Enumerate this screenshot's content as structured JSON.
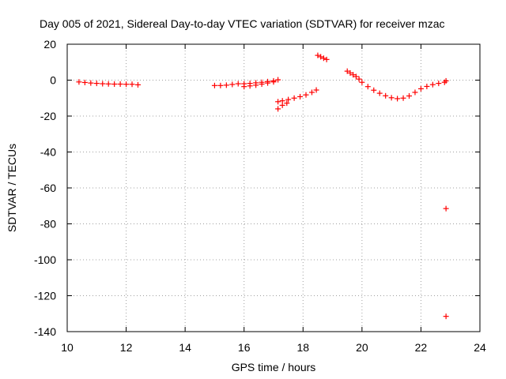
{
  "chart_data": {
    "type": "scatter",
    "title": "Day 005 of 2021, Sidereal Day-to-day VTEC variation (SDTVAR) for receiver mzac",
    "xlabel": "GPS time / hours",
    "ylabel": "SDTVAR / TECUs",
    "xlim": [
      10,
      24
    ],
    "ylim": [
      -140,
      20
    ],
    "xticks": [
      "10",
      "12",
      "14",
      "16",
      "18",
      "20",
      "22",
      "24"
    ],
    "yticks": [
      "20",
      "0",
      "-20",
      "-40",
      "-60",
      "-80",
      "-100",
      "-120",
      "-140"
    ],
    "grid": true,
    "marker": "plus",
    "color": "#ff0000",
    "series": [
      {
        "points": [
          [
            10.4,
            -1.0
          ],
          [
            10.6,
            -1.3
          ],
          [
            10.8,
            -1.6
          ],
          [
            11.0,
            -1.8
          ],
          [
            11.2,
            -2.0
          ],
          [
            11.4,
            -2.1
          ],
          [
            11.6,
            -2.2
          ],
          [
            11.8,
            -2.2
          ],
          [
            12.0,
            -2.3
          ],
          [
            12.2,
            -2.3
          ],
          [
            12.4,
            -2.6
          ],
          [
            15.0,
            -3.0
          ],
          [
            15.2,
            -3.0
          ],
          [
            15.4,
            -2.8
          ],
          [
            15.6,
            -2.4
          ],
          [
            15.8,
            -2.0
          ],
          [
            16.0,
            -2.0
          ],
          [
            16.2,
            -1.8
          ],
          [
            16.4,
            -1.5
          ],
          [
            16.6,
            -1.2
          ],
          [
            16.8,
            -0.8
          ],
          [
            17.0,
            -0.4
          ],
          [
            17.15,
            0.2
          ],
          [
            16.0,
            -3.6
          ],
          [
            16.2,
            -3.2
          ],
          [
            16.4,
            -2.8
          ],
          [
            16.6,
            -2.2
          ],
          [
            16.8,
            -1.6
          ],
          [
            17.0,
            -1.0
          ],
          [
            17.15,
            -12.0
          ],
          [
            17.3,
            -11.5
          ],
          [
            17.5,
            -10.8
          ],
          [
            17.7,
            -10.0
          ],
          [
            17.9,
            -9.2
          ],
          [
            18.1,
            -8.2
          ],
          [
            18.3,
            -6.8
          ],
          [
            18.45,
            -5.5
          ],
          [
            17.15,
            -16.0
          ],
          [
            17.3,
            -14.0
          ],
          [
            17.45,
            -12.8
          ],
          [
            18.5,
            13.8
          ],
          [
            18.6,
            13.0
          ],
          [
            18.7,
            12.2
          ],
          [
            18.8,
            11.5
          ],
          [
            19.5,
            5.0
          ],
          [
            19.6,
            4.0
          ],
          [
            19.7,
            3.0
          ],
          [
            19.8,
            2.0
          ],
          [
            19.9,
            0.6
          ],
          [
            20.0,
            -1.2
          ],
          [
            20.2,
            -3.6
          ],
          [
            20.4,
            -5.6
          ],
          [
            20.6,
            -7.3
          ],
          [
            20.8,
            -8.7
          ],
          [
            21.0,
            -9.8
          ],
          [
            21.2,
            -10.3
          ],
          [
            21.4,
            -10.0
          ],
          [
            21.6,
            -8.8
          ],
          [
            21.8,
            -6.8
          ],
          [
            22.0,
            -4.8
          ],
          [
            22.2,
            -3.5
          ],
          [
            22.4,
            -2.5
          ],
          [
            22.6,
            -1.8
          ],
          [
            22.8,
            -1.2
          ],
          [
            22.85,
            -0.4
          ],
          [
            22.85,
            -71.5
          ],
          [
            22.85,
            -131.5
          ]
        ]
      }
    ]
  }
}
